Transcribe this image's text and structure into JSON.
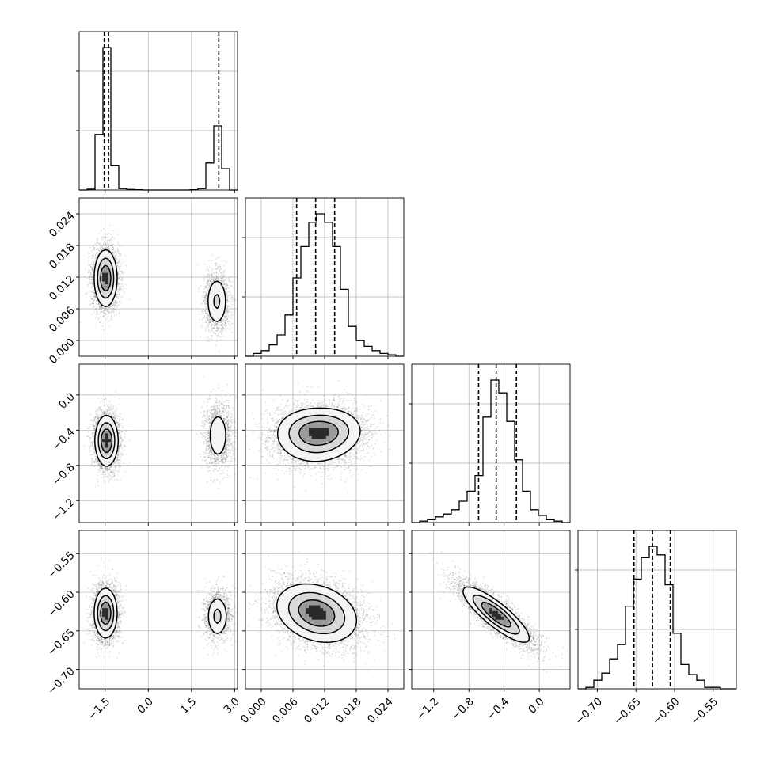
{
  "chart_data": {
    "type": "corner",
    "grid": true,
    "dims": [
      {
        "key": "p0",
        "range": [
          -2.4,
          3.1
        ],
        "ticks": [
          -1.5,
          0.0,
          1.5,
          3.0
        ],
        "tick_labels": [
          "−1.5",
          "0.0",
          "1.5",
          "3.0"
        ],
        "quantiles": [
          -1.53,
          -1.38,
          2.45
        ],
        "histogram": {
          "bin_edges": [
            -2.4,
            -2.125,
            -1.85,
            -1.575,
            -1.3,
            -1.025,
            -0.75,
            -0.475,
            -0.2,
            0.075,
            0.35,
            0.625,
            0.9,
            1.175,
            1.45,
            1.725,
            2.0,
            2.275,
            2.55,
            2.825,
            3.1
          ],
          "counts": [
            0.0,
            0.006,
            0.39,
            1.0,
            0.17,
            0.01,
            0.004,
            0.002,
            0.0,
            0.0,
            0.0,
            0.0,
            0.0,
            0.0,
            0.002,
            0.01,
            0.19,
            0.45,
            0.15,
            0.0
          ]
        }
      },
      {
        "key": "p1",
        "range": [
          -0.003,
          0.027
        ],
        "ticks": [
          0.0,
          0.006,
          0.012,
          0.018,
          0.024
        ],
        "tick_labels": [
          "0.000",
          "0.006",
          "0.012",
          "0.018",
          "0.024"
        ],
        "quantiles": [
          0.0067,
          0.0103,
          0.0139
        ],
        "histogram": {
          "bin_edges": [
            -0.003,
            -0.0015,
            0.0,
            0.0015,
            0.003,
            0.0045,
            0.006,
            0.0075,
            0.009,
            0.0105,
            0.012,
            0.0135,
            0.015,
            0.0165,
            0.018,
            0.0195,
            0.021,
            0.0225,
            0.024,
            0.0255,
            0.027
          ],
          "counts": [
            0.0,
            0.02,
            0.04,
            0.08,
            0.15,
            0.29,
            0.55,
            0.77,
            0.94,
            1.0,
            0.94,
            0.77,
            0.47,
            0.21,
            0.11,
            0.07,
            0.04,
            0.02,
            0.01,
            0.0
          ]
        }
      },
      {
        "key": "p2",
        "range": [
          -1.45,
          0.35
        ],
        "ticks": [
          -1.2,
          -0.8,
          -0.4,
          0.0
        ],
        "tick_labels": [
          "−1.2",
          "−0.8",
          "−0.4",
          "0.0"
        ],
        "quantiles": [
          -0.69,
          -0.49,
          -0.26
        ],
        "histogram": {
          "bin_edges": [
            -1.45,
            -1.36,
            -1.27,
            -1.18,
            -1.09,
            -1.0,
            -0.91,
            -0.82,
            -0.73,
            -0.64,
            -0.55,
            -0.46,
            -0.37,
            -0.28,
            -0.19,
            -0.1,
            -0.01,
            0.08,
            0.17,
            0.26,
            0.35
          ],
          "counts": [
            0.0,
            0.01,
            0.02,
            0.04,
            0.06,
            0.09,
            0.15,
            0.22,
            0.33,
            0.74,
            1.0,
            0.91,
            0.71,
            0.44,
            0.22,
            0.09,
            0.05,
            0.02,
            0.01,
            0.0
          ]
        }
      },
      {
        "key": "p3",
        "range": [
          -0.725,
          -0.52
        ],
        "ticks": [
          -0.7,
          -0.65,
          -0.6,
          -0.55
        ],
        "tick_labels": [
          "−0.70",
          "−0.65",
          "−0.60",
          "−0.55"
        ],
        "quantiles": [
          -0.6525,
          -0.6285,
          -0.6055
        ],
        "histogram": {
          "bin_edges": [
            -0.725,
            -0.71475,
            -0.7045,
            -0.69425,
            -0.684,
            -0.67375,
            -0.6635,
            -0.65325,
            -0.643,
            -0.63275,
            -0.6225,
            -0.61225,
            -0.602,
            -0.59175,
            -0.5815,
            -0.57125,
            -0.561,
            -0.55075,
            -0.5405,
            -0.53025,
            -0.52
          ],
          "counts": [
            0.0,
            0.01,
            0.06,
            0.11,
            0.21,
            0.31,
            0.58,
            0.77,
            0.92,
            1.0,
            0.94,
            0.73,
            0.39,
            0.17,
            0.1,
            0.06,
            0.01,
            0.01,
            0.0,
            0.0
          ]
        }
      }
    ],
    "pairs": [
      {
        "x": "p0",
        "y": "p1",
        "modes": [
          {
            "center": [
              -1.48,
              0.0118
            ],
            "spread": [
              0.22,
              0.003
            ],
            "rho": 0.0,
            "weight": 0.68
          },
          {
            "center": [
              2.38,
              0.0074
            ],
            "spread": [
              0.22,
              0.0028
            ],
            "rho": 0.0,
            "weight": 0.32
          }
        ]
      },
      {
        "x": "p0",
        "y": "p2",
        "modes": [
          {
            "center": [
              -1.45,
              -0.52
            ],
            "spread": [
              0.22,
              0.16
            ],
            "rho": 0.0,
            "weight": 0.68
          },
          {
            "center": [
              2.42,
              -0.46
            ],
            "spread": [
              0.24,
              0.19
            ],
            "rho": 0.0,
            "weight": 0.32
          }
        ]
      },
      {
        "x": "p0",
        "y": "p3",
        "modes": [
          {
            "center": [
              -1.48,
              -0.627
            ],
            "spread": [
              0.22,
              0.018
            ],
            "rho": 0.0,
            "weight": 0.68
          },
          {
            "center": [
              2.4,
              -0.631
            ],
            "spread": [
              0.22,
              0.016
            ],
            "rho": 0.0,
            "weight": 0.32
          }
        ]
      },
      {
        "x": "p1",
        "y": "p2",
        "modes": [
          {
            "center": [
              0.0105,
              -0.5
            ],
            "spread": [
              0.0042,
              0.17
            ],
            "rho": 0.05,
            "weight": 0.55
          },
          {
            "center": [
              0.0085,
              -0.38
            ],
            "spread": [
              0.0034,
              0.14
            ],
            "rho": 0.0,
            "weight": 0.22
          },
          {
            "center": [
              0.0138,
              -0.38
            ],
            "spread": [
              0.0034,
              0.14
            ],
            "rho": 0.0,
            "weight": 0.23
          }
        ]
      },
      {
        "x": "p1",
        "y": "p3",
        "modes": [
          {
            "center": [
              0.0105,
              -0.627
            ],
            "spread": [
              0.0042,
              0.021
            ],
            "rho": -0.25,
            "weight": 1.0
          }
        ]
      },
      {
        "x": "p2",
        "y": "p3",
        "modes": [
          {
            "center": [
              -0.49,
              -0.629
            ],
            "spread": [
              0.21,
              0.02
            ],
            "rho": -0.85,
            "weight": 1.0
          }
        ]
      }
    ],
    "contour_levels": [
      0.2,
      0.45,
      0.72
    ]
  }
}
